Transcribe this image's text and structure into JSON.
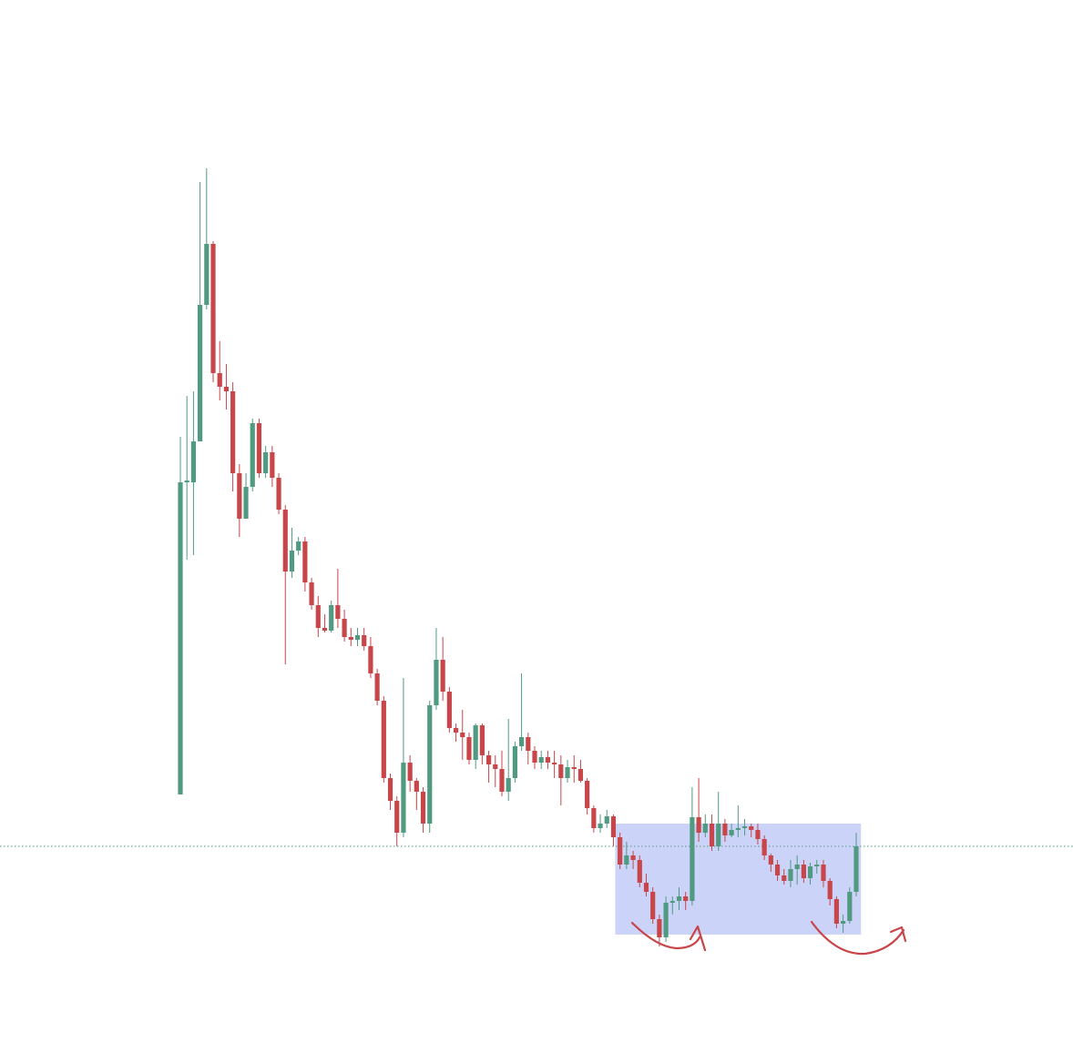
{
  "chart_data": {
    "type": "candlestick",
    "up_color": "#4f9a80",
    "down_color": "#c8454a",
    "open": [
      283,
      626,
      626,
      671,
      821,
      888,
      746,
      731,
      726,
      636,
      586,
      621,
      691,
      636,
      659,
      631,
      596,
      528,
      551,
      561,
      516,
      491,
      466,
      463,
      491,
      476,
      456,
      453,
      458,
      446,
      416,
      386,
      301,
      276,
      241,
      318,
      298,
      286,
      251,
      381,
      431,
      396,
      356,
      351,
      346,
      321,
      359,
      326,
      316,
      311,
      286,
      301,
      336,
      346,
      331,
      318,
      324,
      318,
      316,
      301,
      313,
      311,
      298,
      268,
      246,
      251,
      259,
      236,
      206,
      216,
      211,
      186,
      176,
      146,
      126,
      164,
      166,
      171,
      166,
      258,
      241,
      251,
      226,
      251,
      238,
      244,
      246,
      248,
      244,
      234,
      216,
      206,
      194,
      188,
      201,
      206,
      191,
      204,
      206,
      188,
      168,
      141,
      144,
      176
    ],
    "high": [
      676,
      721,
      726,
      956,
      971,
      891,
      781,
      756,
      736,
      646,
      636,
      696,
      696,
      666,
      666,
      636,
      601,
      576,
      566,
      566,
      521,
      501,
      481,
      496,
      531,
      486,
      466,
      466,
      466,
      456,
      421,
      391,
      306,
      281,
      411,
      326,
      301,
      291,
      386,
      466,
      456,
      401,
      361,
      376,
      351,
      361,
      361,
      331,
      326,
      331,
      366,
      341,
      416,
      351,
      336,
      331,
      331,
      331,
      326,
      321,
      326,
      321,
      301,
      271,
      261,
      266,
      261,
      241,
      231,
      221,
      216,
      196,
      181,
      151,
      171,
      171,
      181,
      176,
      291,
      301,
      261,
      261,
      286,
      256,
      251,
      271,
      256,
      251,
      251,
      238,
      218,
      211,
      201,
      211,
      216,
      211,
      208,
      211,
      211,
      191,
      171,
      151,
      181,
      241
    ],
    "low": [
      283,
      541,
      546,
      671,
      816,
      736,
      716,
      706,
      616,
      566,
      586,
      616,
      631,
      631,
      621,
      591,
      426,
      521,
      546,
      506,
      486,
      456,
      461,
      461,
      466,
      451,
      446,
      446,
      441,
      411,
      381,
      296,
      266,
      226,
      236,
      286,
      266,
      241,
      241,
      376,
      386,
      351,
      341,
      321,
      316,
      311,
      316,
      296,
      291,
      281,
      276,
      296,
      331,
      316,
      311,
      311,
      311,
      301,
      271,
      296,
      296,
      296,
      261,
      241,
      241,
      246,
      226,
      201,
      201,
      201,
      181,
      171,
      141,
      116,
      121,
      151,
      156,
      156,
      161,
      231,
      236,
      221,
      221,
      231,
      236,
      236,
      238,
      236,
      228,
      211,
      198,
      188,
      184,
      181,
      184,
      186,
      184,
      196,
      181,
      161,
      136,
      131,
      141,
      171
    ],
    "close": [
      626,
      628,
      671,
      821,
      888,
      746,
      731,
      726,
      636,
      586,
      621,
      691,
      636,
      659,
      631,
      596,
      528,
      551,
      561,
      516,
      491,
      466,
      463,
      491,
      476,
      456,
      453,
      458,
      446,
      416,
      386,
      301,
      276,
      241,
      318,
      298,
      286,
      251,
      381,
      431,
      396,
      356,
      351,
      346,
      321,
      359,
      326,
      316,
      311,
      286,
      301,
      336,
      346,
      331,
      318,
      324,
      318,
      316,
      301,
      313,
      311,
      298,
      268,
      246,
      251,
      259,
      236,
      206,
      216,
      211,
      186,
      176,
      146,
      126,
      164,
      166,
      171,
      166,
      258,
      241,
      251,
      226,
      251,
      238,
      244,
      246,
      248,
      244,
      234,
      216,
      206,
      194,
      188,
      201,
      206,
      191,
      204,
      206,
      188,
      168,
      141,
      144,
      176,
      226
    ],
    "ylim": [
      0,
      1156
    ],
    "reference_line": 226,
    "reference_color": "#4f9a80",
    "zone": {
      "ylim": [
        129,
        251
      ],
      "from": 67,
      "color": "#9aa8f2"
    },
    "annotation_color": "#c8454a"
  }
}
